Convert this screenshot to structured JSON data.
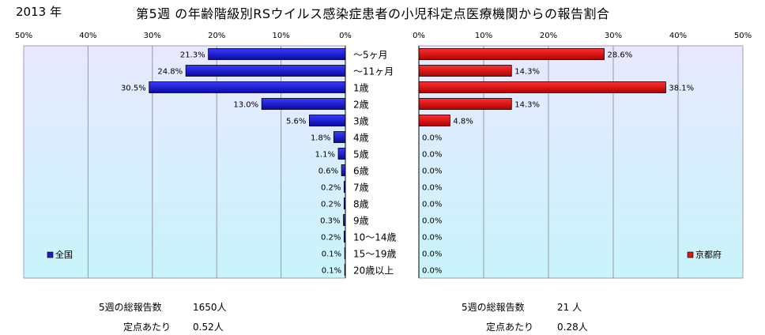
{
  "header": {
    "year": "2013 年",
    "title": "第5週 の年齢階級別RSウイルス感染症患者の小児科定点医療機関からの報告割合"
  },
  "chart_data": {
    "type": "bar",
    "orientation": "horizontal",
    "categories": [
      "～5ヶ月",
      "～11ヶ月",
      "1歳",
      "2歳",
      "3歳",
      "4歳",
      "5歳",
      "6歳",
      "7歳",
      "8歳",
      "9歳",
      "10～14歳",
      "15～19歳",
      "20歳以上"
    ],
    "panels": [
      {
        "legend": "全国",
        "legend_placement": "bottom-left",
        "direction": "right-to-left",
        "values": [
          21.3,
          24.8,
          30.5,
          13.0,
          5.6,
          1.8,
          1.1,
          0.6,
          0.2,
          0.2,
          0.3,
          0.2,
          0.1,
          0.1
        ],
        "labels": [
          "21.3%",
          "24.8%",
          "30.5%",
          "13.0%",
          "5.6%",
          "1.8%",
          "1.1%",
          "0.6%",
          "0.2%",
          "0.2%",
          "0.3%",
          "0.2%",
          "0.1%",
          "0.1%"
        ],
        "ticks": [
          "50%",
          "40%",
          "30%",
          "20%",
          "10%",
          "0%"
        ],
        "xlim": [
          0,
          50
        ],
        "color": "#1c1cc8",
        "grid": true
      },
      {
        "legend": "京都府",
        "legend_placement": "bottom-right",
        "direction": "left-to-right",
        "values": [
          28.6,
          14.3,
          38.1,
          14.3,
          4.8,
          0,
          0,
          0,
          0,
          0,
          0,
          0,
          0,
          0
        ],
        "labels": [
          "28.6%",
          "14.3%",
          "38.1%",
          "14.3%",
          "4.8%",
          "0.0%",
          "0.0%",
          "0.0%",
          "0.0%",
          "0.0%",
          "0.0%",
          "0.0%",
          "0.0%",
          "0.0%"
        ],
        "ticks": [
          "0%",
          "10%",
          "20%",
          "30%",
          "40%",
          "50%"
        ],
        "xlim": [
          0,
          50
        ],
        "color": "#d81818",
        "grid": true
      }
    ]
  },
  "stats": {
    "left": {
      "total_label": "5週の総報告数",
      "total_value": "1650人",
      "per_label": "定点あたり",
      "per_value": "0.52人"
    },
    "right": {
      "total_label": "5週の総報告数",
      "total_value": "21 人",
      "per_label": "定点あたり",
      "per_value": "0.28人"
    }
  },
  "colors": {
    "plot_bg_top": "#e8e8ff",
    "plot_bg_bottom": "#c8f4fb",
    "grid": "#9898a8"
  }
}
